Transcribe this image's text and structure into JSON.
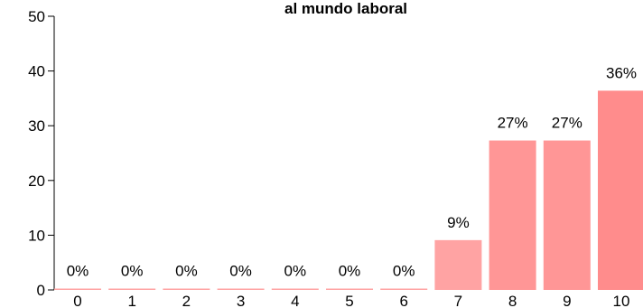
{
  "chart_data": {
    "type": "bar",
    "title": "al mundo laboral",
    "xlabel": "",
    "ylabel": "",
    "categories": [
      "0",
      "1",
      "2",
      "3",
      "4",
      "5",
      "6",
      "7",
      "8",
      "9",
      "10"
    ],
    "values": [
      0,
      0,
      0,
      0,
      0,
      0,
      0,
      9.1,
      27.3,
      27.3,
      36.4
    ],
    "data_labels": [
      "0%",
      "0%",
      "0%",
      "0%",
      "0%",
      "0%",
      "0%",
      "9%",
      "27%",
      "27%",
      "36%"
    ],
    "yticks": [
      "0",
      "10",
      "20",
      "30",
      "40",
      "50"
    ],
    "ylim": [
      0,
      50
    ],
    "grid": false,
    "colors": [
      "#ffa3a3",
      "#ffa3a3",
      "#ffa3a3",
      "#ffa3a3",
      "#ffa3a3",
      "#ffa3a3",
      "#ffa3a3",
      "#ffa3a3",
      "#ff9696",
      "#ff9696",
      "#ff8c8c"
    ],
    "axis_color": "#000000"
  }
}
